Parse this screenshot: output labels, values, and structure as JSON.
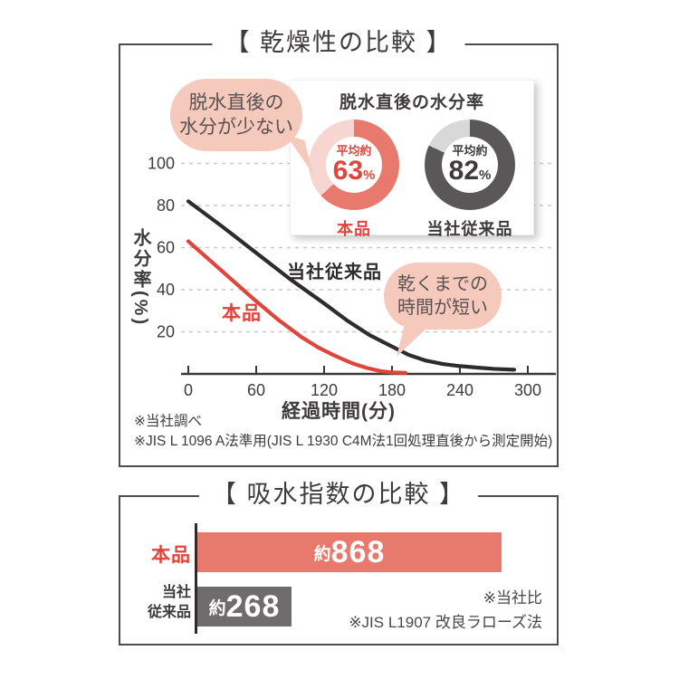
{
  "panel_drying": {
    "title": "【 乾燥性の比較 】",
    "bubble_left": {
      "line1": "脱水直後の",
      "line2": "水分が少ない"
    },
    "bubble_right": {
      "line1": "乾くまでの",
      "line2": "時間が短い"
    },
    "note1": "※当社調べ",
    "note2": "※JIS L 1096 A法準用(JIS L 1930 C4M法1回処理直後から測定開始)"
  },
  "panel_absorption": {
    "title": "【 吸水指数の比較 】",
    "note1": "※当社比",
    "note2": "※JIS L1907 改良ラローズ法"
  },
  "colors": {
    "accent_red": "#e0453c",
    "salmon": "#e8796d",
    "light_pink": "#f7d6d1",
    "dark_gray": "#595757",
    "light_gray": "#d8d8d8",
    "bar_gray": "#6e6c6c",
    "bubble_pink": "#f6c9bd",
    "ink": "#3f3b3a",
    "line_black": "#2e2c2b"
  },
  "chart_data": [
    {
      "type": "pie",
      "subtype": "donut-pair",
      "title": "脱水直後の水分率",
      "items": [
        {
          "label": "本品",
          "prefix": "平均約",
          "value": 63,
          "unit": "%",
          "arc_color": "#e8796d",
          "track_color": "#f7d6d1",
          "text_color": "#e0453c"
        },
        {
          "label": "当社従来品",
          "prefix": "平均約",
          "value": 82,
          "unit": "%",
          "arc_color": "#595757",
          "track_color": "#d8d8d8",
          "text_color": "#3f3b3a"
        }
      ]
    },
    {
      "type": "line",
      "xlabel": "経過時間(分)",
      "ylabel": "水分率(%)",
      "xticks": [
        0,
        60,
        120,
        180,
        240,
        300
      ],
      "yticks": [
        20,
        40,
        60,
        80,
        100
      ],
      "xlim": [
        0,
        310
      ],
      "ylim": [
        0,
        105
      ],
      "grid": true,
      "legend_position": "on-plot",
      "series": [
        {
          "name": "本品",
          "color": "#e0453c",
          "points": [
            [
              0,
              63
            ],
            [
              20,
              53.5
            ],
            [
              40,
              44
            ],
            [
              60,
              34.5
            ],
            [
              80,
              25.5
            ],
            [
              100,
              17.5
            ],
            [
              115,
              12.5
            ],
            [
              130,
              8.5
            ],
            [
              145,
              5
            ],
            [
              158,
              2.8
            ],
            [
              170,
              1.3
            ],
            [
              180,
              0.7
            ],
            [
              192,
              0.5
            ]
          ]
        },
        {
          "name": "当社従来品",
          "color": "#2e2c2b",
          "points": [
            [
              0,
              82
            ],
            [
              30,
              70
            ],
            [
              60,
              57.5
            ],
            [
              90,
              45
            ],
            [
              120,
              33.5
            ],
            [
              140,
              25.5
            ],
            [
              160,
              18.5
            ],
            [
              180,
              13
            ],
            [
              195,
              9
            ],
            [
              210,
              6.3
            ],
            [
              225,
              4.7
            ],
            [
              240,
              3.7
            ],
            [
              255,
              3
            ],
            [
              270,
              2.4
            ],
            [
              288,
              2
            ]
          ]
        }
      ]
    },
    {
      "type": "bar",
      "orientation": "horizontal",
      "xmax": 900,
      "bars": [
        {
          "label_lines": [
            "本品"
          ],
          "prefix": "約",
          "number": "868",
          "value": 868,
          "color": "#e8796d",
          "label_color": "#e0453c"
        },
        {
          "label_lines": [
            "当社",
            "従来品"
          ],
          "prefix": "約",
          "number": "268",
          "value": 268,
          "color": "#6e6c6c",
          "label_color": "#3f3b3a"
        }
      ]
    }
  ]
}
